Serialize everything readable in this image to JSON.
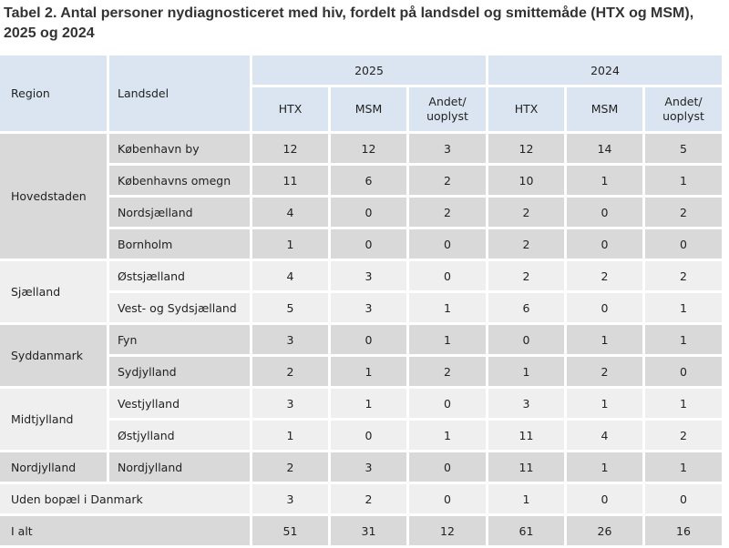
{
  "title": "Tabel 2. Antal personer nydiagnosticeret med hiv, fordelt på landsdel og smittemåde (HTX og MSM), 2025 og 2024",
  "header": {
    "region": "Region",
    "landsdel": "Landsdel",
    "years": [
      "2025",
      "2024"
    ],
    "columns": [
      "HTX",
      "MSM",
      "Andet/ uoplyst",
      "HTX",
      "MSM",
      "Andet/ uoplyst"
    ]
  },
  "groups": [
    {
      "region": "Hovedstaden",
      "shade": "g",
      "rows": [
        {
          "landsdel": "København by",
          "values": [
            "12",
            "12",
            "3",
            "12",
            "14",
            "5"
          ]
        },
        {
          "landsdel": "Københavns omegn",
          "values": [
            "11",
            "6",
            "2",
            "10",
            "1",
            "1"
          ]
        },
        {
          "landsdel": "Nordsjælland",
          "values": [
            "4",
            "0",
            "2",
            "2",
            "0",
            "2"
          ]
        },
        {
          "landsdel": "Bornholm",
          "values": [
            "1",
            "0",
            "0",
            "2",
            "0",
            "0"
          ]
        }
      ]
    },
    {
      "region": "Sjælland",
      "shade": "l",
      "rows": [
        {
          "landsdel": "Østsjælland",
          "values": [
            "4",
            "3",
            "0",
            "2",
            "2",
            "2"
          ]
        },
        {
          "landsdel": "Vest- og Sydsjælland",
          "values": [
            "5",
            "3",
            "1",
            "6",
            "0",
            "1"
          ]
        }
      ]
    },
    {
      "region": "Syddanmark",
      "shade": "g",
      "rows": [
        {
          "landsdel": "Fyn",
          "values": [
            "3",
            "0",
            "1",
            "0",
            "1",
            "1"
          ]
        },
        {
          "landsdel": "Sydjylland",
          "values": [
            "2",
            "1",
            "2",
            "1",
            "2",
            "0"
          ]
        }
      ]
    },
    {
      "region": "Midtjylland",
      "shade": "l",
      "rows": [
        {
          "landsdel": "Vestjylland",
          "values": [
            "3",
            "1",
            "0",
            "3",
            "1",
            "1"
          ]
        },
        {
          "landsdel": "Østjylland",
          "values": [
            "1",
            "0",
            "1",
            "11",
            "4",
            "2"
          ]
        }
      ]
    },
    {
      "region": "Nordjylland",
      "shade": "g",
      "rows": [
        {
          "landsdel": "Nordjylland",
          "values": [
            "2",
            "3",
            "0",
            "11",
            "1",
            "1"
          ]
        }
      ]
    }
  ],
  "summary_rows": [
    {
      "label": "Uden bopæl i Danmark",
      "shade": "l",
      "values": [
        "3",
        "2",
        "0",
        "1",
        "0",
        "0"
      ]
    },
    {
      "label": "I alt",
      "shade": "g",
      "values": [
        "51",
        "31",
        "12",
        "61",
        "26",
        "16"
      ]
    }
  ]
}
